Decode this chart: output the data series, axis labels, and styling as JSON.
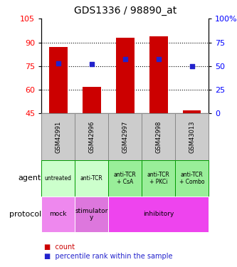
{
  "title": "GDS1336 / 98890_at",
  "samples": [
    "GSM42991",
    "GSM42996",
    "GSM42997",
    "GSM42998",
    "GSM43013"
  ],
  "counts": [
    87,
    62,
    93,
    94,
    47
  ],
  "percentile_ranks": [
    53,
    52,
    57,
    57,
    50
  ],
  "ylim_left": [
    45,
    105
  ],
  "ylim_right": [
    0,
    100
  ],
  "yticks_left": [
    45,
    60,
    75,
    90,
    105
  ],
  "yticks_right": [
    0,
    25,
    50,
    75,
    100
  ],
  "bar_color": "#cc0000",
  "dot_color": "#2222cc",
  "bar_width": 0.55,
  "agent_labels": [
    "untreated",
    "anti-TCR",
    "anti-TCR\n+ CsA",
    "anti-TCR\n+ PKCi",
    "anti-TCR\n+ Combo"
  ],
  "agent_bg_light": "#ccffcc",
  "agent_bg_dark": "#99ee99",
  "agent_border": "#009900",
  "protocol_mock_bg": "#ee88ee",
  "protocol_stim_bg": "#dd77dd",
  "protocol_inhibitory_bg": "#ee44ee",
  "gsm_bg": "#cccccc",
  "gsm_border": "#888888",
  "legend_count_color": "#cc0000",
  "legend_pct_color": "#2222cc",
  "gridline_yticks": [
    60,
    75,
    90
  ],
  "right_tick_labels": [
    "0",
    "25",
    "50",
    "75",
    "100%"
  ]
}
